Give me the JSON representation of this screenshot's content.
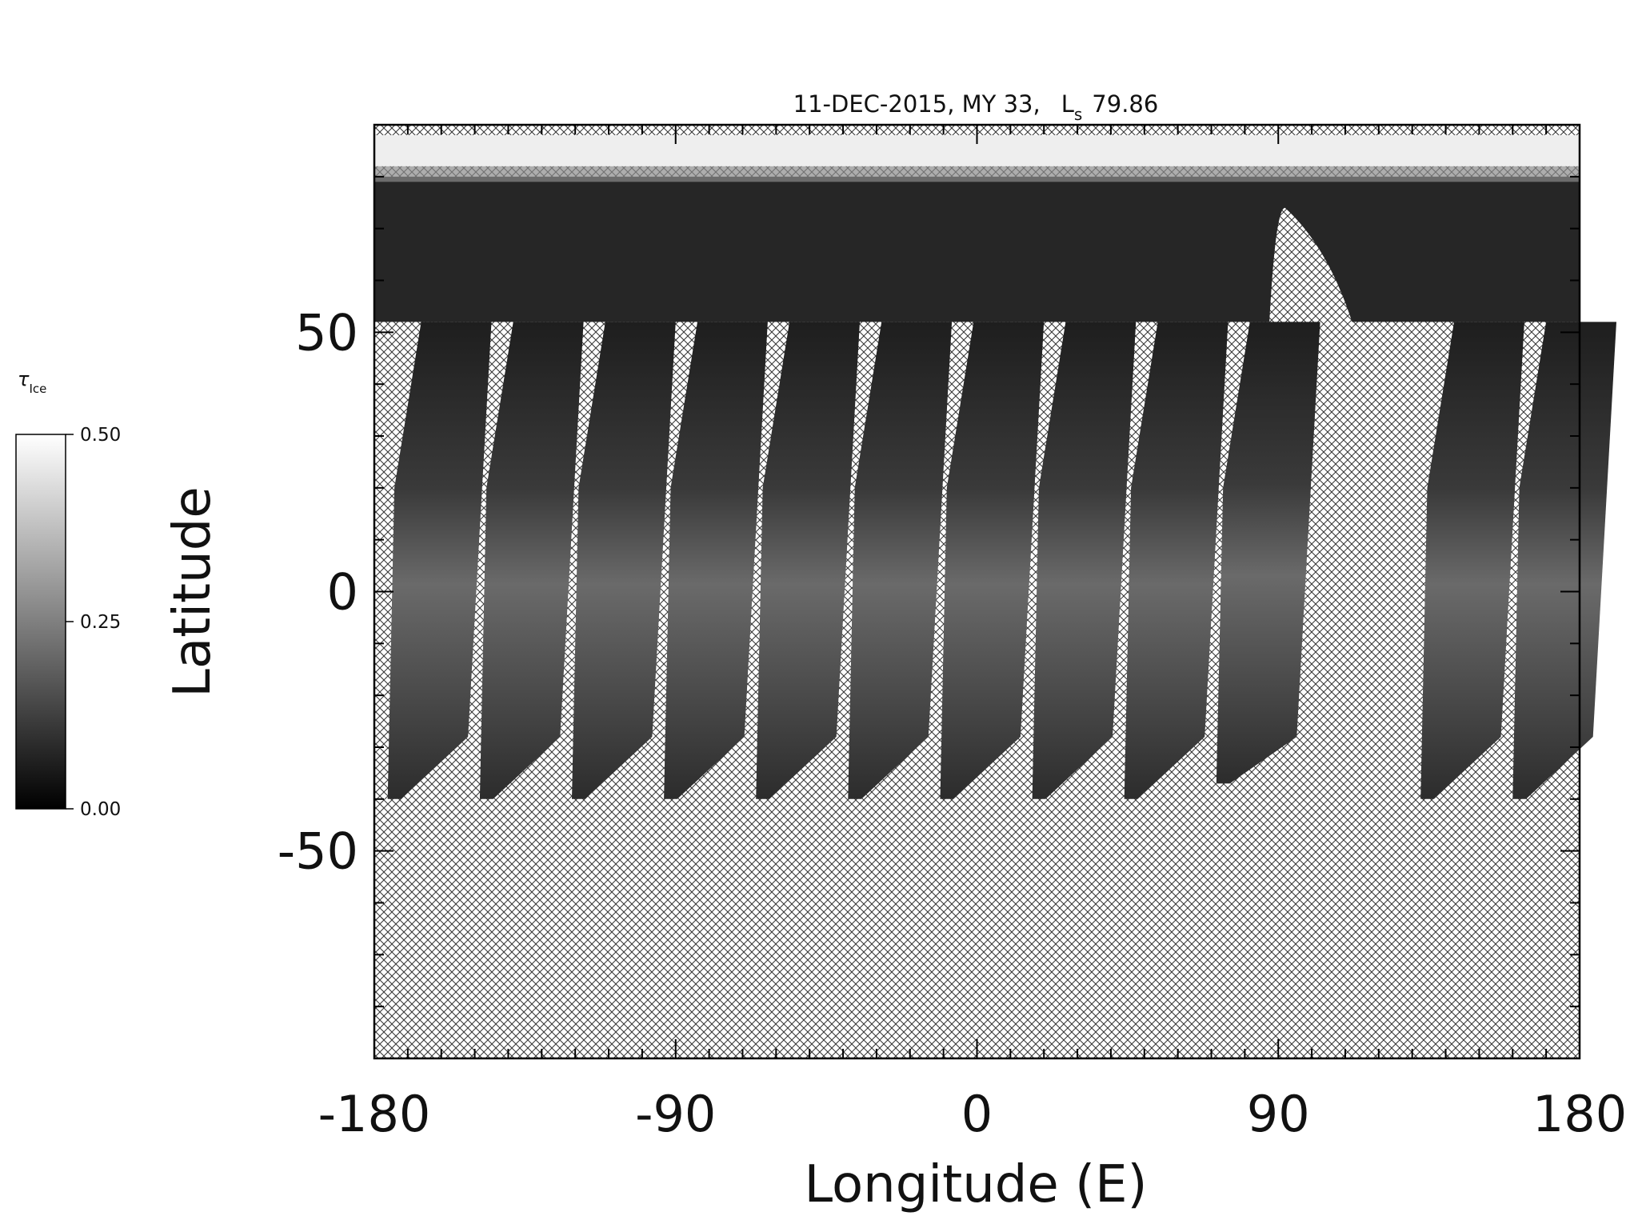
{
  "chart_data": {
    "type": "map",
    "title": "11-DEC-2015, MY 33,",
    "title_ls": "L",
    "title_ls_sub": "s",
    "title_ls_value": "79.86",
    "xlabel": "Longitude (E)",
    "ylabel": "Latitude",
    "xlim": [
      -180,
      180
    ],
    "ylim": [
      -90,
      90
    ],
    "xticks": [
      -180,
      -90,
      0,
      90,
      180
    ],
    "yticks": [
      -50,
      0,
      50
    ],
    "xminorticks": [
      -170,
      -160,
      -150,
      -140,
      -130,
      -120,
      -110,
      -100,
      -80,
      -70,
      -60,
      -50,
      -40,
      -30,
      -20,
      -10,
      10,
      20,
      30,
      40,
      50,
      60,
      70,
      80,
      100,
      110,
      120,
      130,
      140,
      150,
      160,
      170
    ],
    "yminorticks": [
      -80,
      -70,
      -60,
      -40,
      -30,
      -20,
      -10,
      10,
      20,
      30,
      40,
      60,
      70,
      80
    ],
    "colorbar": {
      "label": "τ",
      "label_sub": "Ice",
      "lim": [
        0,
        0.5
      ],
      "ticks": [
        {
          "value": 0,
          "label": "0.00"
        },
        {
          "value": 0.25,
          "label": "0.25"
        },
        {
          "value": 0.5,
          "label": "0.50"
        }
      ]
    }
  }
}
